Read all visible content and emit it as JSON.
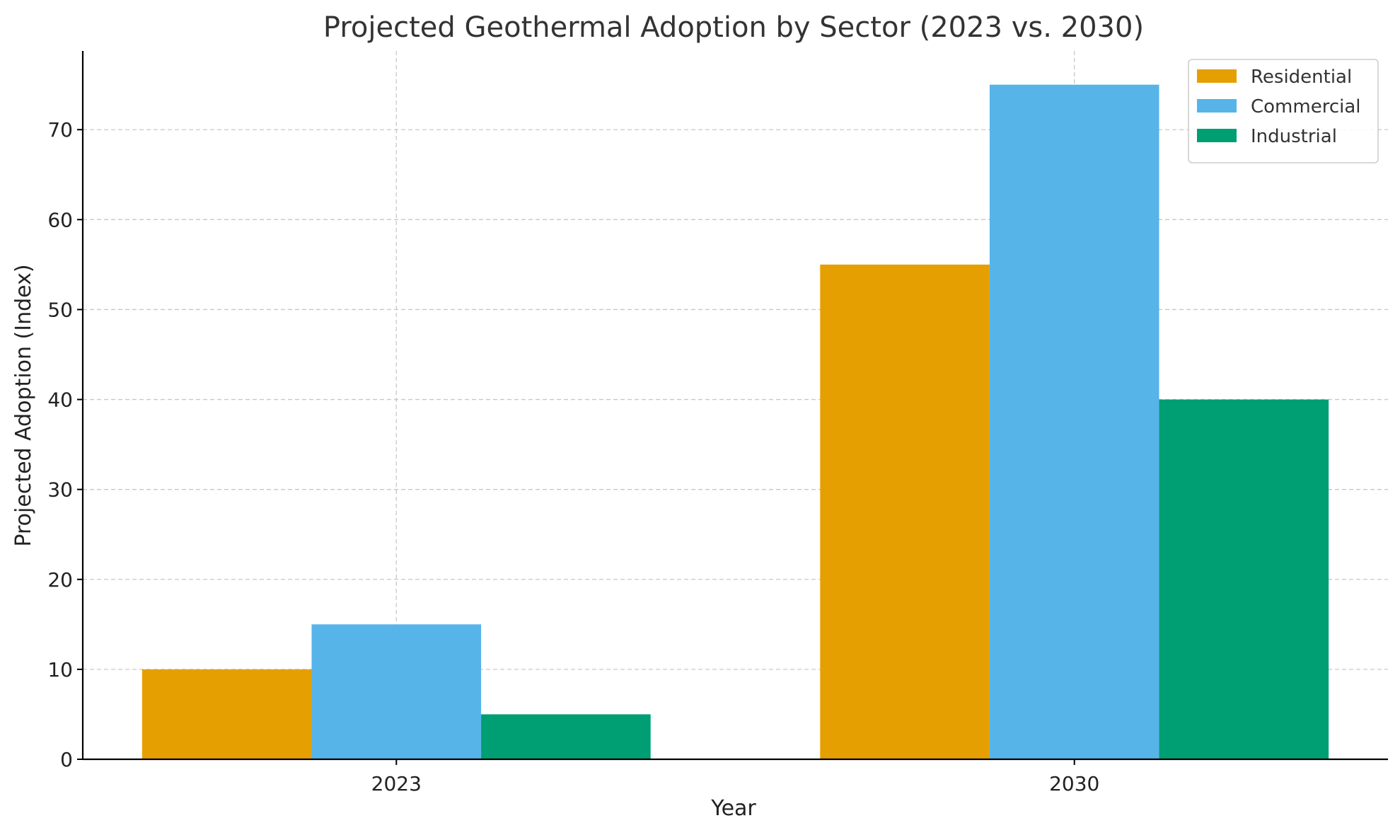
{
  "chart_data": {
    "type": "bar",
    "title": "Projected Geothermal Adoption by Sector (2023 vs. 2030)",
    "xlabel": "Year",
    "ylabel": "Projected Adoption (Index)",
    "categories": [
      "2023",
      "2030"
    ],
    "series": [
      {
        "name": "Residential",
        "values": [
          10,
          55
        ],
        "color": "#E69F00"
      },
      {
        "name": "Commercial",
        "values": [
          15,
          75
        ],
        "color": "#56B4E9"
      },
      {
        "name": "Industrial",
        "values": [
          5,
          40
        ],
        "color": "#009E73"
      }
    ],
    "ylim": [
      0,
      78.75
    ],
    "yticks": [
      0,
      10,
      20,
      30,
      40,
      50,
      60,
      70
    ],
    "grid": true,
    "legend_position": "top-right"
  }
}
